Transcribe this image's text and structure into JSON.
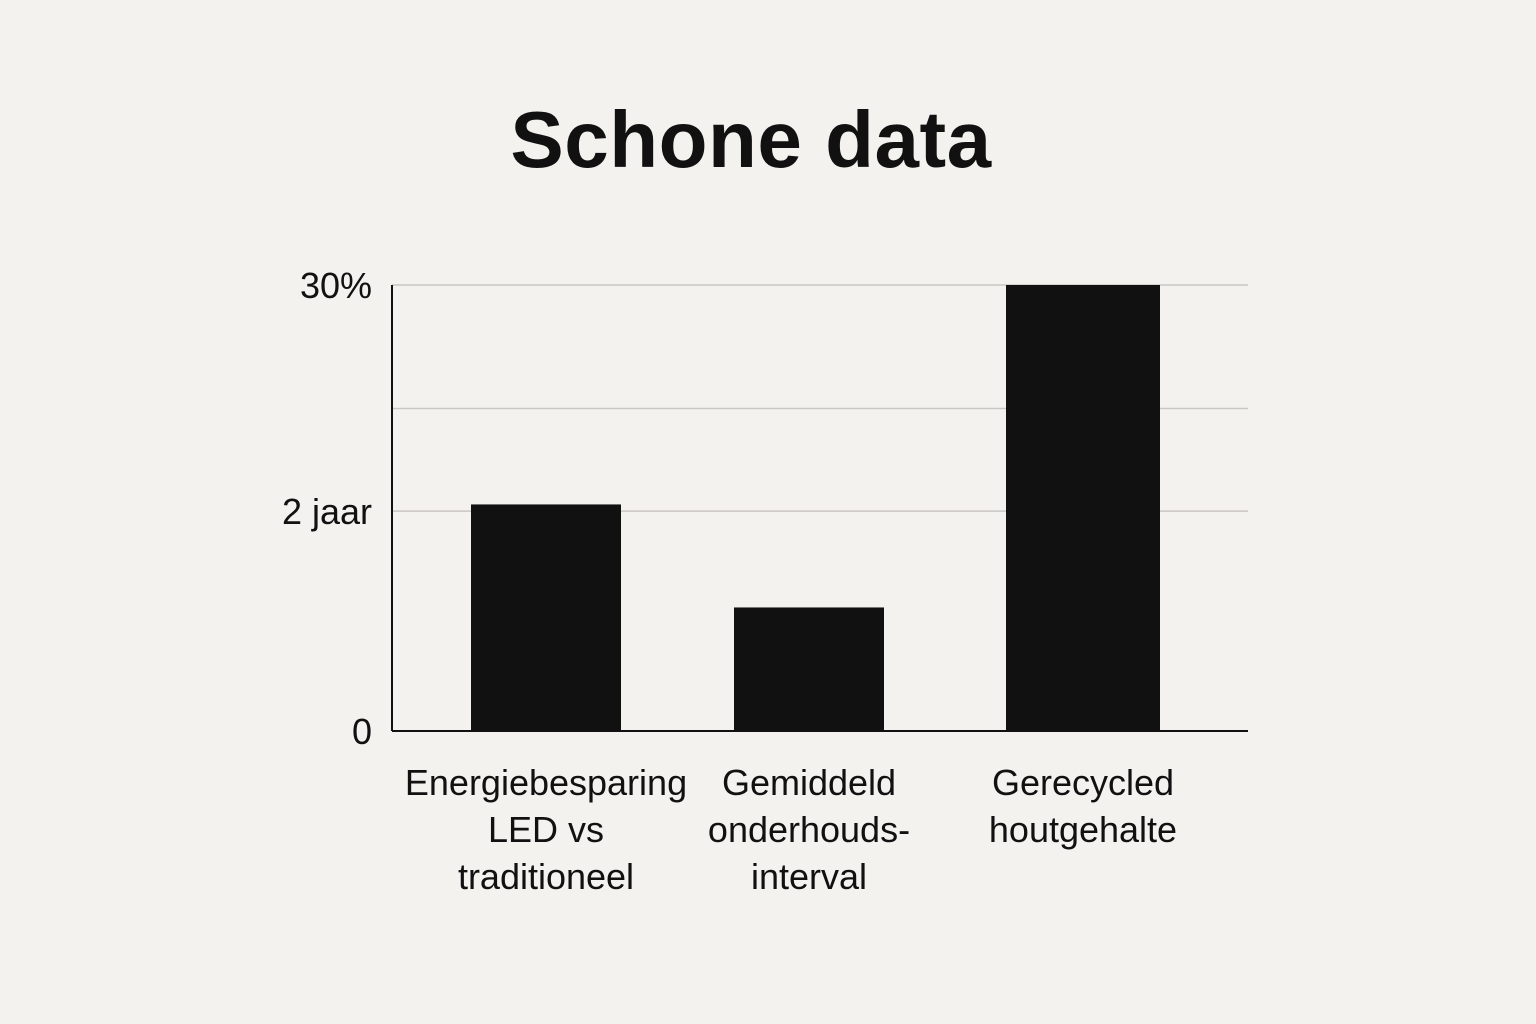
{
  "chart_data": {
    "type": "bar",
    "title": "Schone data",
    "xlabel": "",
    "ylabel": "",
    "grid": true,
    "categories": [
      [
        "Energiebesparing",
        "LED vs",
        "traditioneel"
      ],
      [
        "Gemiddeld",
        "onderhouds-",
        "interval"
      ],
      [
        "Gerecycled",
        "houtgehalte"
      ]
    ],
    "y_tick_labels": [
      {
        "label": "0",
        "value": 0
      },
      {
        "label": "2 jaar",
        "value": 0.493
      },
      {
        "label": "30%",
        "value": 1
      }
    ],
    "gridlines": [
      0.493,
      0.723,
      1
    ],
    "ylim": [
      0,
      1
    ],
    "values": [
      0.508,
      0.277,
      1.0
    ],
    "colors": {
      "bar": "#111111",
      "axis": "#111111",
      "grid": "#c9c7c3",
      "background": "#f4f2ee"
    }
  }
}
